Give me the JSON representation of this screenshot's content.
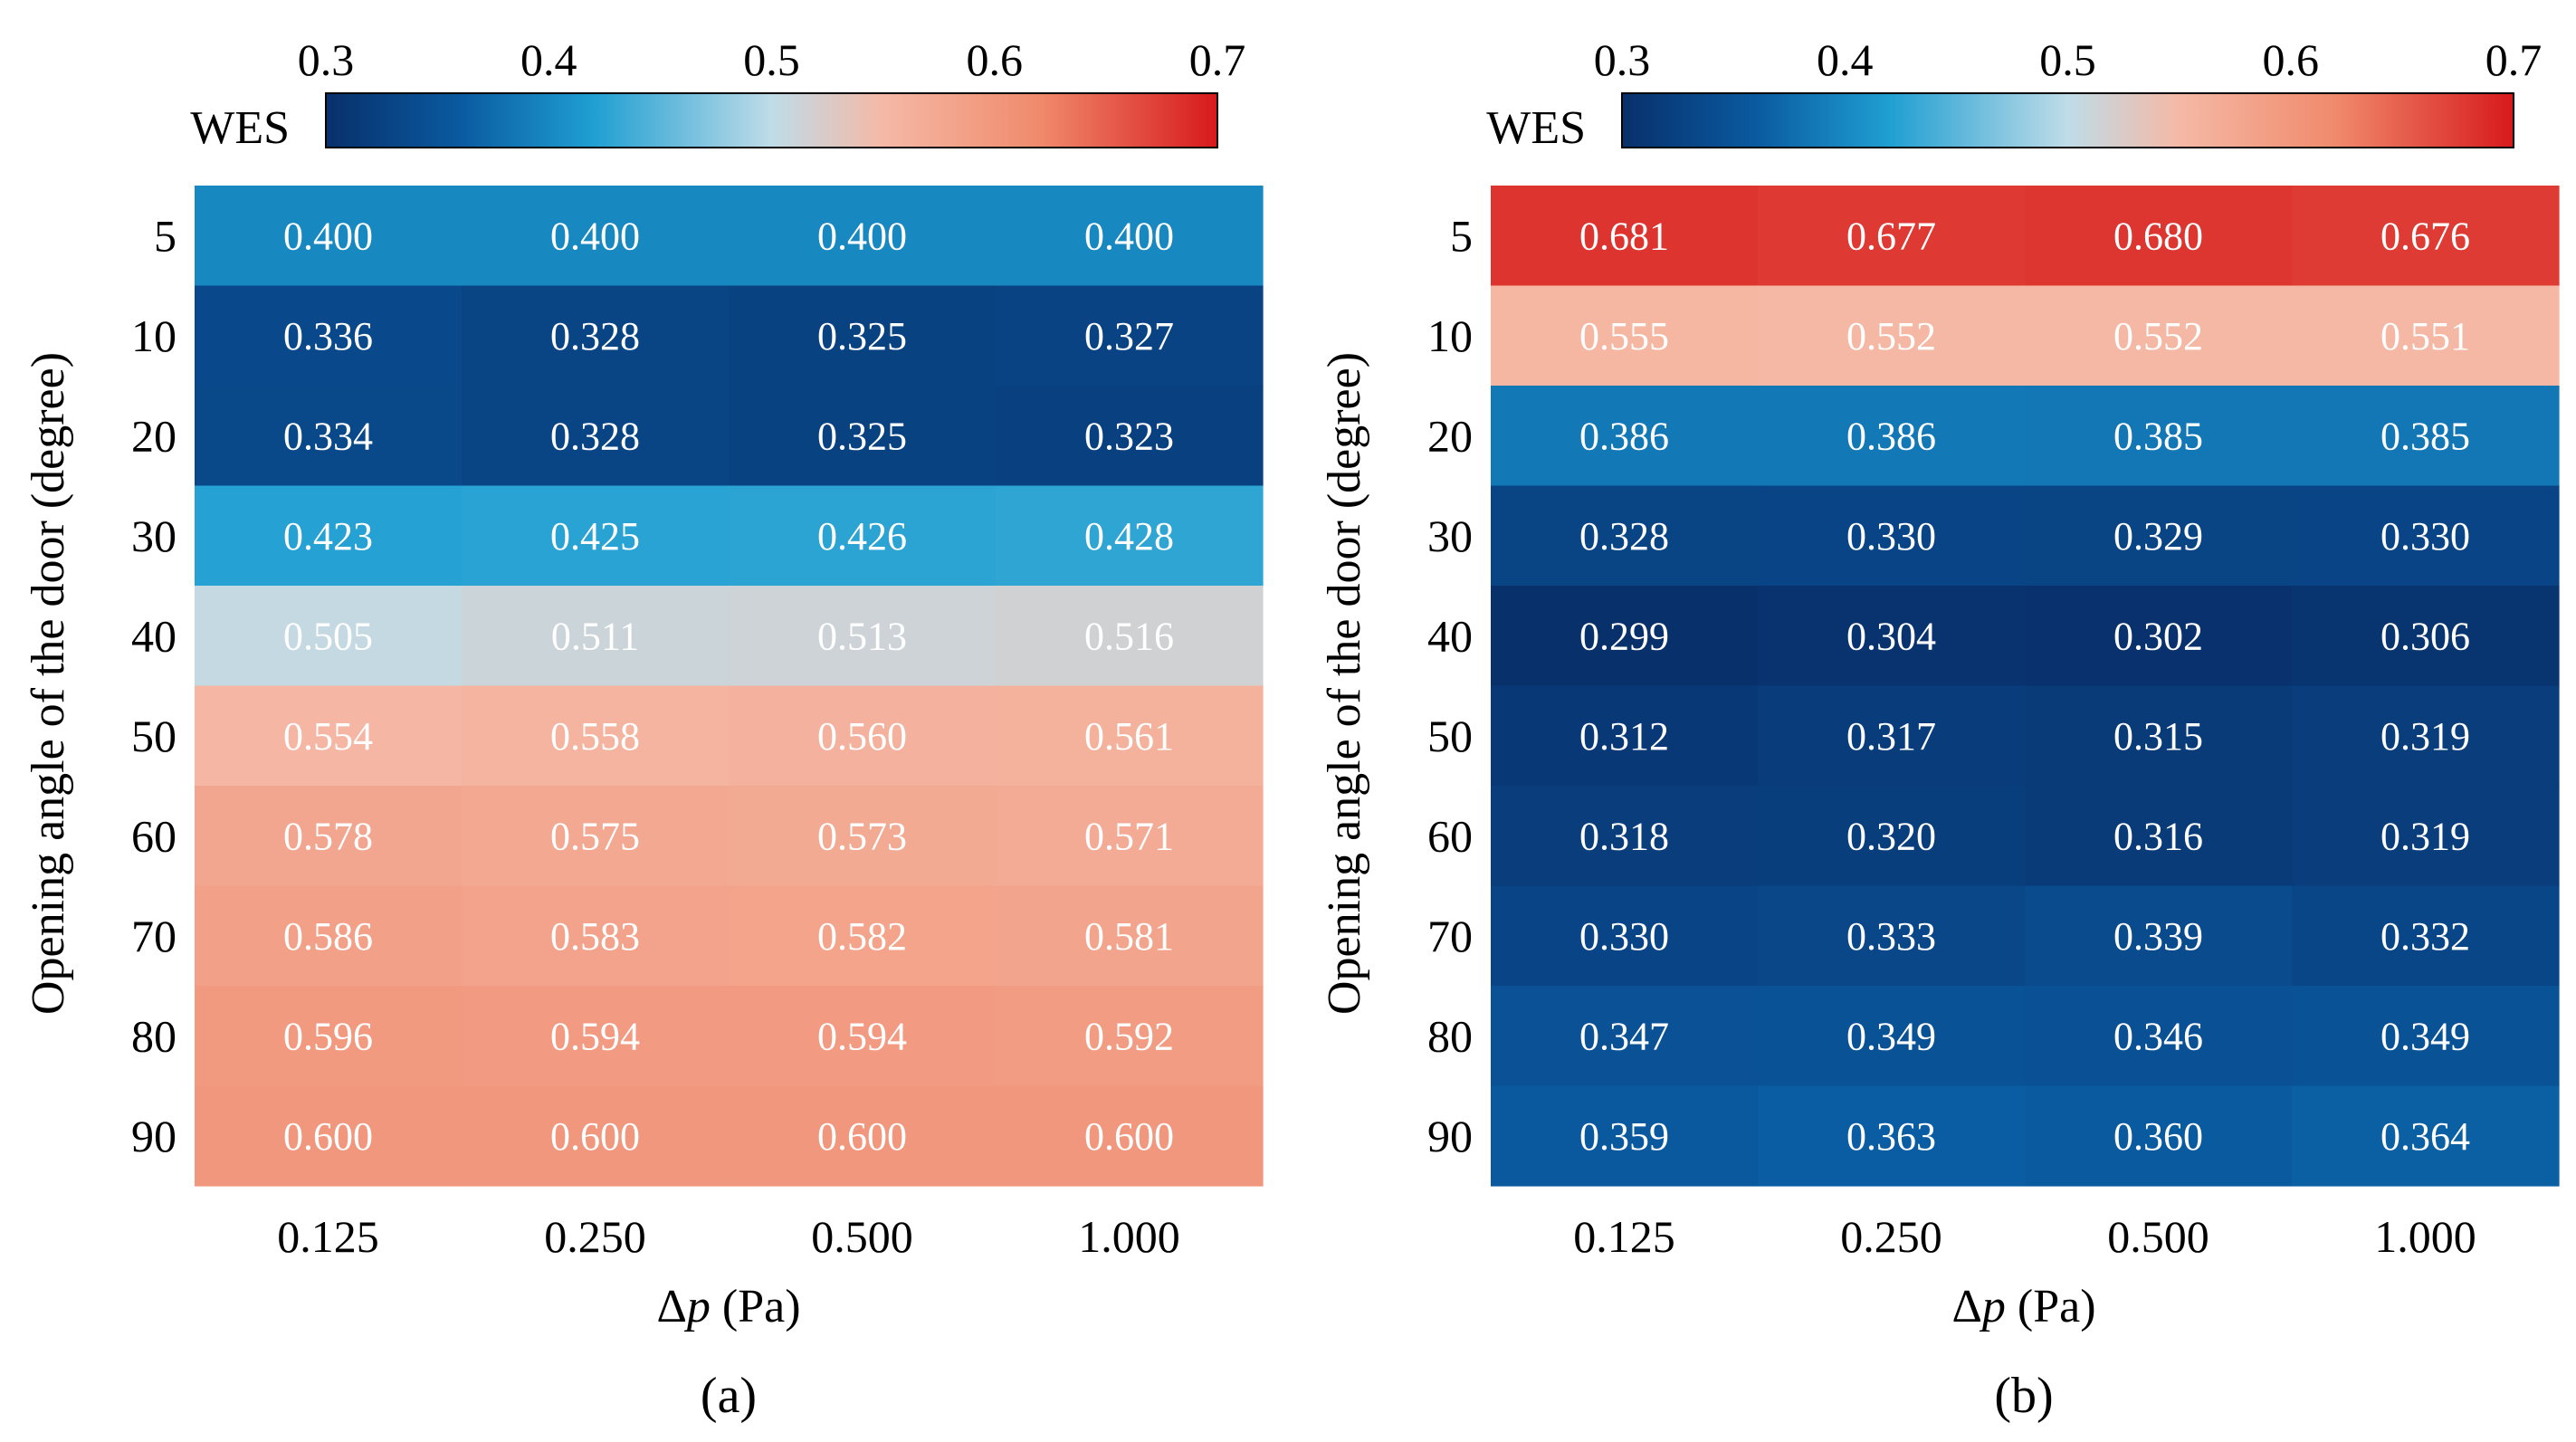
{
  "colorbar": {
    "label": "WES",
    "ticks": [
      0.3,
      0.4,
      0.5,
      0.6,
      0.7
    ],
    "tick_labels": [
      "0.3",
      "0.4",
      "0.5",
      "0.6",
      "0.7"
    ],
    "range": [
      0.3,
      0.7
    ],
    "stops": [
      {
        "v": 0.3,
        "c": "#08306b"
      },
      {
        "v": 0.36,
        "c": "#0a5aa0"
      },
      {
        "v": 0.42,
        "c": "#1f9fd2"
      },
      {
        "v": 0.5,
        "c": "#bfdce8"
      },
      {
        "v": 0.55,
        "c": "#f5b9a6"
      },
      {
        "v": 0.62,
        "c": "#f08a6c"
      },
      {
        "v": 0.7,
        "c": "#d7191c"
      }
    ]
  },
  "chart_data": [
    {
      "type": "heatmap",
      "panel": "(a)",
      "xlabel_prefix": "Δ",
      "xlabel_var": "p",
      "xlabel_suffix": " (Pa)",
      "ylabel": "Opening angle of the door (degree)",
      "x_categories": [
        "0.125",
        "0.250",
        "0.500",
        "1.000"
      ],
      "y_categories": [
        "5",
        "10",
        "20",
        "30",
        "40",
        "50",
        "60",
        "70",
        "80",
        "90"
      ],
      "values": [
        [
          0.4,
          0.4,
          0.4,
          0.4
        ],
        [
          0.336,
          0.328,
          0.325,
          0.327
        ],
        [
          0.334,
          0.328,
          0.325,
          0.323
        ],
        [
          0.423,
          0.425,
          0.426,
          0.428
        ],
        [
          0.505,
          0.511,
          0.513,
          0.516
        ],
        [
          0.554,
          0.558,
          0.56,
          0.561
        ],
        [
          0.578,
          0.575,
          0.573,
          0.571
        ],
        [
          0.586,
          0.583,
          0.582,
          0.581
        ],
        [
          0.596,
          0.594,
          0.594,
          0.592
        ],
        [
          0.6,
          0.6,
          0.6,
          0.6
        ]
      ]
    },
    {
      "type": "heatmap",
      "panel": "(b)",
      "xlabel_prefix": "Δ",
      "xlabel_var": "p",
      "xlabel_suffix": " (Pa)",
      "ylabel": "Opening angle of the door (degree)",
      "x_categories": [
        "0.125",
        "0.250",
        "0.500",
        "1.000"
      ],
      "y_categories": [
        "5",
        "10",
        "20",
        "30",
        "40",
        "50",
        "60",
        "70",
        "80",
        "90"
      ],
      "values": [
        [
          0.681,
          0.677,
          0.68,
          0.676
        ],
        [
          0.555,
          0.552,
          0.552,
          0.551
        ],
        [
          0.386,
          0.386,
          0.385,
          0.385
        ],
        [
          0.328,
          0.33,
          0.329,
          0.33
        ],
        [
          0.299,
          0.304,
          0.302,
          0.306
        ],
        [
          0.312,
          0.317,
          0.315,
          0.319
        ],
        [
          0.318,
          0.32,
          0.316,
          0.319
        ],
        [
          0.33,
          0.333,
          0.339,
          0.332
        ],
        [
          0.347,
          0.349,
          0.346,
          0.349
        ],
        [
          0.359,
          0.363,
          0.36,
          0.364
        ]
      ]
    }
  ]
}
